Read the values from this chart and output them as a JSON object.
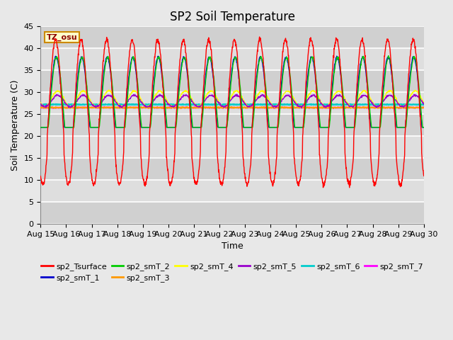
{
  "title": "SP2 Soil Temperature",
  "xlabel": "Time",
  "ylabel": "Soil Temperature (C)",
  "ylim": [
    0,
    45
  ],
  "yticks": [
    0,
    5,
    10,
    15,
    20,
    25,
    30,
    35,
    40,
    45
  ],
  "x_labels": [
    "Aug 15",
    "Aug 16",
    "Aug 17",
    "Aug 18",
    "Aug 19",
    "Aug 20",
    "Aug 21",
    "Aug 22",
    "Aug 23",
    "Aug 24",
    "Aug 25",
    "Aug 26",
    "Aug 27",
    "Aug 28",
    "Aug 29",
    "Aug 30"
  ],
  "tz_label": "TZ_osu",
  "series_colors": {
    "sp2_Tsurface": "#FF0000",
    "sp2_smT_1": "#0000CC",
    "sp2_smT_2": "#00CC00",
    "sp2_smT_3": "#FF9900",
    "sp2_smT_4": "#FFFF00",
    "sp2_smT_5": "#9900CC",
    "sp2_smT_6": "#00CCCC",
    "sp2_smT_7": "#FF00FF"
  },
  "title_fontsize": 12,
  "axis_label_fontsize": 9,
  "tick_fontsize": 8,
  "legend_fontsize": 8
}
